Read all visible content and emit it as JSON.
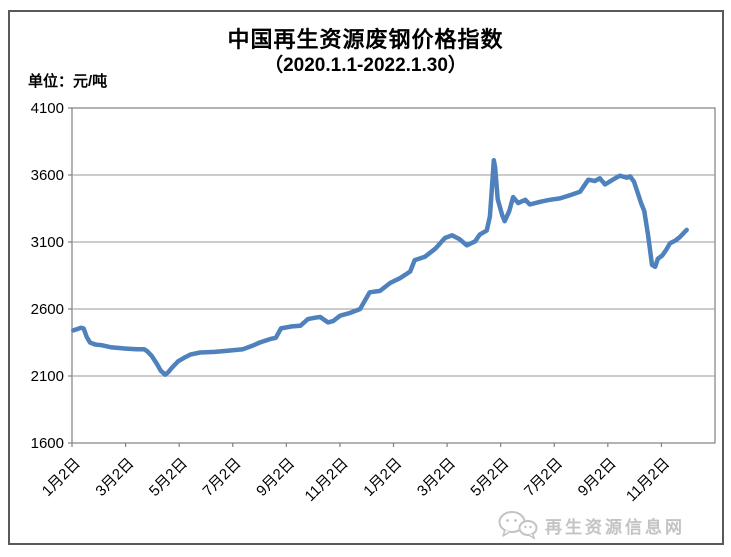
{
  "page": {
    "title": "中国再生资源废钢价格指数",
    "subtitle": "（2020.1.1-2022.1.30）",
    "unit_label": "单位：元/吨"
  },
  "footer": {
    "watermark_text": "再生资源信息网",
    "watermark_icon": "wechat-chat-bubbles-icon"
  },
  "colors": {
    "line": "#4F81BD",
    "grid": "#999999",
    "plot_border": "#808080",
    "frame": "#595959",
    "text": "#000000",
    "watermark": "#c3c3c3"
  },
  "chart_data": {
    "type": "line",
    "title": "中国再生资源废钢价格指数",
    "subtitle": "（2020.1.1-2022.1.30）",
    "unit": "元/吨",
    "grid": true,
    "legend": "none",
    "y_axis": {
      "min": 1600,
      "max": 4100,
      "tick_step": 500,
      "ticks": [
        4100,
        3600,
        3100,
        2600,
        2100,
        1600
      ]
    },
    "x_axis": {
      "tick_labels": [
        "1月2日",
        "3月2日",
        "5月2日",
        "7月2日",
        "9月2日",
        "11月2日",
        "1月2日",
        "3月2日",
        "5月2日",
        "7月2日",
        "9月2日",
        "11月2日"
      ],
      "label_rotation_deg": -45,
      "date_range": "2020.1.1-2022.1.30"
    },
    "series": [
      {
        "color": "#4F81BD",
        "x_format": "fraction_of_axis_0to1",
        "points": [
          [
            0.002,
            2440
          ],
          [
            0.008,
            2450
          ],
          [
            0.014,
            2460
          ],
          [
            0.018,
            2455
          ],
          [
            0.023,
            2390
          ],
          [
            0.028,
            2350
          ],
          [
            0.036,
            2335
          ],
          [
            0.046,
            2330
          ],
          [
            0.06,
            2315
          ],
          [
            0.082,
            2305
          ],
          [
            0.1,
            2300
          ],
          [
            0.112,
            2300
          ],
          [
            0.117,
            2285
          ],
          [
            0.124,
            2250
          ],
          [
            0.132,
            2190
          ],
          [
            0.138,
            2140
          ],
          [
            0.145,
            2110
          ],
          [
            0.15,
            2130
          ],
          [
            0.156,
            2165
          ],
          [
            0.165,
            2210
          ],
          [
            0.176,
            2240
          ],
          [
            0.184,
            2260
          ],
          [
            0.199,
            2275
          ],
          [
            0.222,
            2280
          ],
          [
            0.246,
            2290
          ],
          [
            0.266,
            2300
          ],
          [
            0.28,
            2325
          ],
          [
            0.292,
            2350
          ],
          [
            0.308,
            2375
          ],
          [
            0.317,
            2385
          ],
          [
            0.325,
            2455
          ],
          [
            0.342,
            2470
          ],
          [
            0.355,
            2475
          ],
          [
            0.367,
            2525
          ],
          [
            0.378,
            2535
          ],
          [
            0.386,
            2540
          ],
          [
            0.398,
            2500
          ],
          [
            0.406,
            2510
          ],
          [
            0.417,
            2550
          ],
          [
            0.432,
            2570
          ],
          [
            0.448,
            2600
          ],
          [
            0.463,
            2725
          ],
          [
            0.479,
            2735
          ],
          [
            0.495,
            2795
          ],
          [
            0.51,
            2830
          ],
          [
            0.526,
            2880
          ],
          [
            0.533,
            2965
          ],
          [
            0.549,
            2990
          ],
          [
            0.565,
            3050
          ],
          [
            0.58,
            3130
          ],
          [
            0.591,
            3150
          ],
          [
            0.603,
            3120
          ],
          [
            0.614,
            3075
          ],
          [
            0.627,
            3105
          ],
          [
            0.634,
            3155
          ],
          [
            0.645,
            3185
          ],
          [
            0.65,
            3290
          ],
          [
            0.653,
            3500
          ],
          [
            0.656,
            3710
          ],
          [
            0.658,
            3660
          ],
          [
            0.662,
            3420
          ],
          [
            0.669,
            3300
          ],
          [
            0.673,
            3255
          ],
          [
            0.68,
            3330
          ],
          [
            0.686,
            3435
          ],
          [
            0.694,
            3390
          ],
          [
            0.705,
            3415
          ],
          [
            0.712,
            3380
          ],
          [
            0.728,
            3400
          ],
          [
            0.743,
            3415
          ],
          [
            0.759,
            3425
          ],
          [
            0.775,
            3450
          ],
          [
            0.79,
            3475
          ],
          [
            0.803,
            3565
          ],
          [
            0.813,
            3555
          ],
          [
            0.821,
            3575
          ],
          [
            0.829,
            3530
          ],
          [
            0.841,
            3565
          ],
          [
            0.852,
            3595
          ],
          [
            0.863,
            3580
          ],
          [
            0.868,
            3590
          ],
          [
            0.874,
            3550
          ],
          [
            0.88,
            3465
          ],
          [
            0.885,
            3390
          ],
          [
            0.89,
            3330
          ],
          [
            0.896,
            3150
          ],
          [
            0.902,
            2930
          ],
          [
            0.907,
            2915
          ],
          [
            0.911,
            2975
          ],
          [
            0.918,
            3000
          ],
          [
            0.924,
            3040
          ],
          [
            0.93,
            3090
          ],
          [
            0.938,
            3110
          ],
          [
            0.945,
            3135
          ],
          [
            0.952,
            3170
          ],
          [
            0.956,
            3190
          ]
        ]
      }
    ]
  }
}
